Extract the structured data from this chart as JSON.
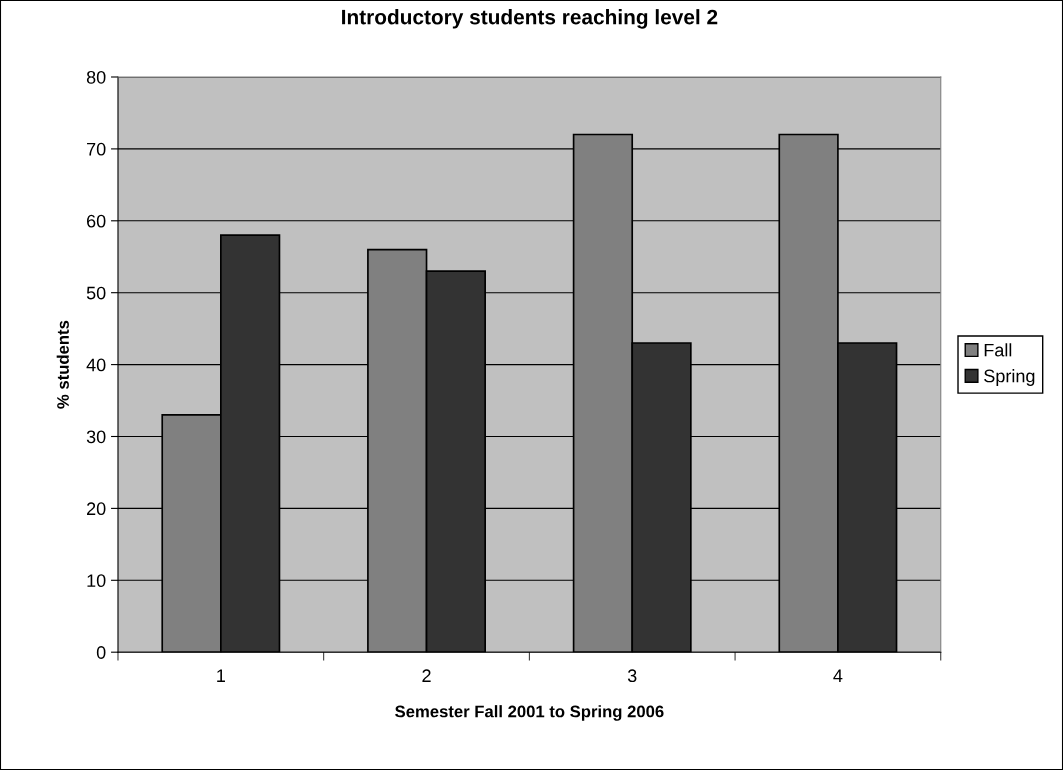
{
  "chart_data": {
    "type": "bar",
    "title": "Introductory students reaching level 2",
    "xlabel": "Semester Fall 2001 to Spring 2006",
    "ylabel": "% students",
    "categories": [
      "1",
      "2",
      "3",
      "4"
    ],
    "series": [
      {
        "name": "Fall",
        "color": "#808080",
        "values": [
          33,
          56,
          72,
          72
        ]
      },
      {
        "name": "Spring",
        "color": "#333333",
        "values": [
          58,
          53,
          43,
          43
        ]
      }
    ],
    "ylim": [
      0,
      80
    ],
    "yticks": [
      0,
      10,
      20,
      30,
      40,
      50,
      60,
      70,
      80
    ],
    "grid": "y",
    "legend": "right"
  }
}
